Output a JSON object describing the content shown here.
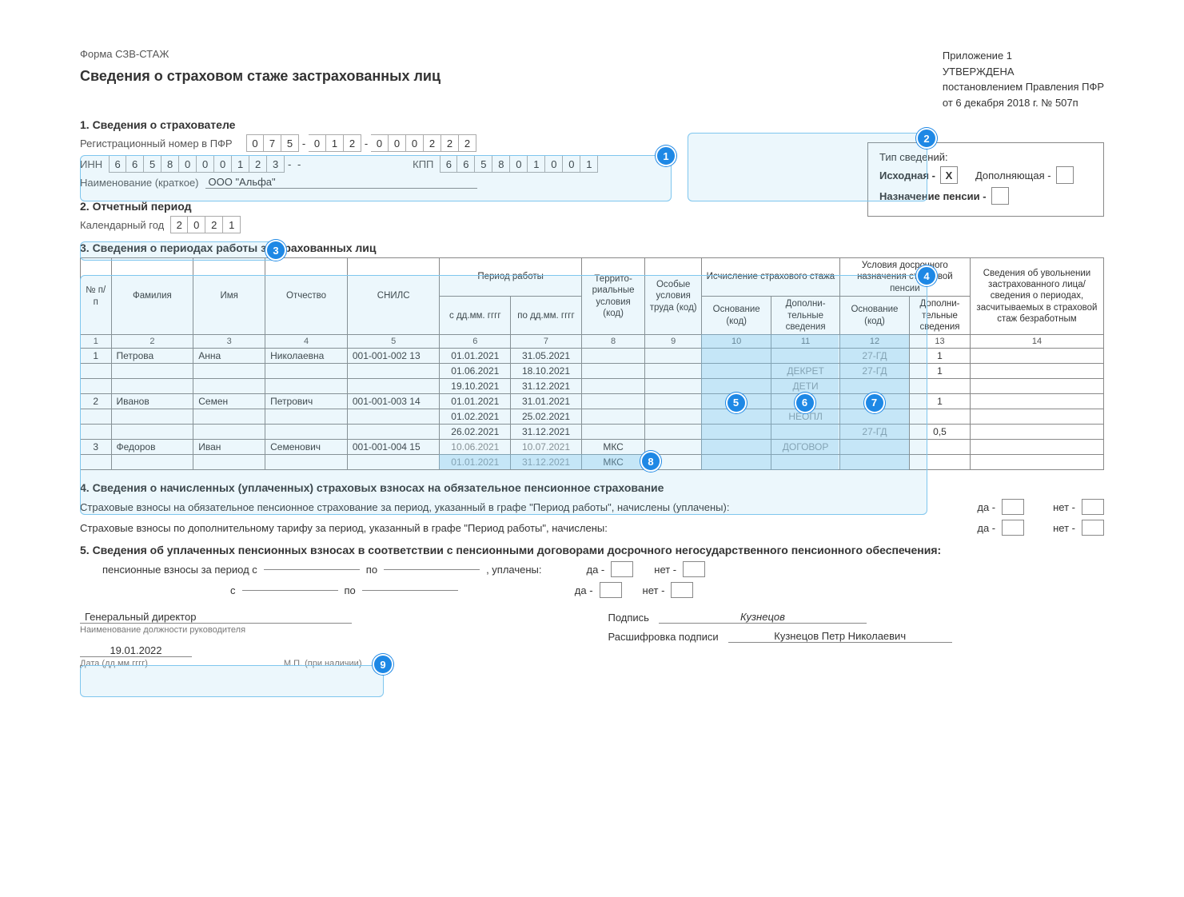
{
  "header": {
    "form_code": "Форма СЗВ-СТАЖ",
    "title": "Сведения о страховом стаже застрахованных лиц",
    "appendix": "Приложение 1",
    "approved": "УТВЕРЖДЕНА",
    "by": "постановлением Правления ПФР",
    "date_no": "от 6 декабря 2018 г. № 507п"
  },
  "s1": {
    "heading": "1. Сведения о страхователе",
    "reg_label": "Регистрационный номер в ПФР",
    "reg": [
      "0",
      "7",
      "5",
      "-",
      "0",
      "1",
      "2",
      "-",
      "0",
      "0",
      "0",
      "2",
      "2",
      "2"
    ],
    "inn_label": "ИНН",
    "inn": [
      "6",
      "6",
      "5",
      "8",
      "0",
      "0",
      "0",
      "1",
      "2",
      "3",
      "-",
      "-"
    ],
    "kpp_label": "КПП",
    "kpp": [
      "6",
      "6",
      "5",
      "8",
      "0",
      "1",
      "0",
      "0",
      "1"
    ],
    "name_label": "Наименование (краткое)",
    "name_val": "ООО \"Альфа\""
  },
  "typebox": {
    "title": "Тип сведений:",
    "orig": "Исходная -",
    "orig_mark": "X",
    "supp": "Дополняющая -",
    "pension": "Назначение пенсии -"
  },
  "s2": {
    "heading": "2. Отчетный период",
    "label": "Календарный год",
    "year": [
      "2",
      "0",
      "2",
      "1"
    ]
  },
  "s3": {
    "heading": "3. Сведения о периодах работы застрахованных лиц",
    "cols": {
      "c1": "№ п/п",
      "c2": "Фамилия",
      "c3": "Имя",
      "c4": "Отчество",
      "c5": "СНИЛС",
      "c6g": "Период работы",
      "c6": "с дд.мм. гггг",
      "c7": "по дд.мм. гггг",
      "c8": "Террито-риальные условия (код)",
      "c9": "Особые условия труда (код)",
      "c10g": "Исчисление страхового стажа",
      "c10": "Основание (код)",
      "c11": "Дополни-тельные сведения",
      "c12g": "Условия досрочного назначения страховой пенсии",
      "c12": "Основание (код)",
      "c13": "Дополни-тельные сведения",
      "c14": "Сведения об увольнении застрахованного лица/ сведения о периодах, засчитываемых в страховой стаж безработным"
    },
    "numrow": [
      "1",
      "2",
      "3",
      "4",
      "5",
      "6",
      "7",
      "8",
      "9",
      "10",
      "11",
      "12",
      "13",
      "14"
    ],
    "rows": [
      {
        "n": "1",
        "f": "Петрова",
        "i": "Анна",
        "o": "Николаевна",
        "s": "001-001-002 13",
        "d1": "01.01.2021",
        "d2": "31.05.2021",
        "t": "",
        "os": "",
        "b": "",
        "ds": "",
        "b2": "27-ГД",
        "ds2": "1",
        "u": ""
      },
      {
        "n": "",
        "f": "",
        "i": "",
        "o": "",
        "s": "",
        "d1": "01.06.2021",
        "d2": "18.10.2021",
        "t": "",
        "os": "",
        "b": "",
        "ds": "ДЕКРЕТ",
        "b2": "27-ГД",
        "ds2": "1",
        "u": ""
      },
      {
        "n": "",
        "f": "",
        "i": "",
        "o": "",
        "s": "",
        "d1": "19.10.2021",
        "d2": "31.12.2021",
        "t": "",
        "os": "",
        "b": "",
        "ds": "ДЕТИ",
        "b2": "",
        "ds2": "",
        "u": ""
      },
      {
        "n": "2",
        "f": "Иванов",
        "i": "Семен",
        "o": "Петрович",
        "s": "001-001-003 14",
        "d1": "01.01.2021",
        "d2": "31.01.2021",
        "t": "",
        "os": "",
        "b": "",
        "ds": "",
        "b2": "",
        "ds2": "1",
        "u": ""
      },
      {
        "n": "",
        "f": "",
        "i": "",
        "o": "",
        "s": "",
        "d1": "01.02.2021",
        "d2": "25.02.2021",
        "t": "",
        "os": "",
        "b": "",
        "ds": "НЕОПЛ",
        "b2": "",
        "ds2": "",
        "u": ""
      },
      {
        "n": "",
        "f": "",
        "i": "",
        "o": "",
        "s": "",
        "d1": "26.02.2021",
        "d2": "31.12.2021",
        "t": "",
        "os": "",
        "b": "",
        "ds": "",
        "b2": "27-ГД",
        "ds2": "0,5",
        "u": ""
      },
      {
        "n": "3",
        "f": "Федоров",
        "i": "Иван",
        "o": "Семенович",
        "s": "001-001-004 15",
        "d1": "10.06.2021",
        "d2": "10.07.2021",
        "t": "МКС",
        "os": "",
        "b": "",
        "ds": "ДОГОВОР",
        "b2": "",
        "ds2": "",
        "u": ""
      },
      {
        "n": "",
        "f": "",
        "i": "",
        "o": "",
        "s": "",
        "d1": "01.01.2021",
        "d2": "31.12.2021",
        "t": "МКС",
        "os": "",
        "b": "",
        "ds": "",
        "b2": "",
        "ds2": "",
        "u": ""
      }
    ]
  },
  "s4": {
    "heading": "4. Сведения о начисленных (уплаченных) страховых взносах на обязательное пенсионное страхование",
    "l1": "Страховые взносы на обязательное пенсионное страхование за период, указанный в графе \"Период работы\", начислены (уплачены):",
    "l2": "Страховые взносы по дополнительному тарифу за период, указанный в графе \"Период работы\", начислены:",
    "da": "да -",
    "net": "нет -"
  },
  "s5": {
    "heading": "5. Сведения об уплаченных пенсионных взносах в соответствии с пенсионными договорами досрочного негосударственного пенсионного обеспечения:",
    "l1a": "пенсионные взносы за период с",
    "po": "по",
    "upl": ", уплачены:",
    "l2a": "с",
    "da": "да -",
    "net": "нет -"
  },
  "sig": {
    "pos": "Генеральный директор",
    "pos_sub": "Наименование должности руководителя",
    "sign_lbl": "Подпись",
    "sign_val": "Кузнецов",
    "decode_lbl": "Расшифровка подписи",
    "decode_val": "Кузнецов Петр Николаевич",
    "date": "19.01.2022",
    "date_sub": "Дата (дд.мм.гггг)",
    "mp": "М.П. (при наличии)"
  },
  "markers": {
    "m1": "1",
    "m2": "2",
    "m3": "3",
    "m4": "4",
    "m5": "5",
    "m6": "6",
    "m7": "7",
    "m8": "8",
    "m9": "9"
  },
  "style": {
    "accent": "#1e88e5",
    "hl_fill": "rgba(127,198,238,0.15)",
    "hl_border": "#7fc6ee",
    "text_gray": "#888888",
    "border": "#888888",
    "font_size_body": 13,
    "font_size_table": 12,
    "font_size_title": 18
  }
}
